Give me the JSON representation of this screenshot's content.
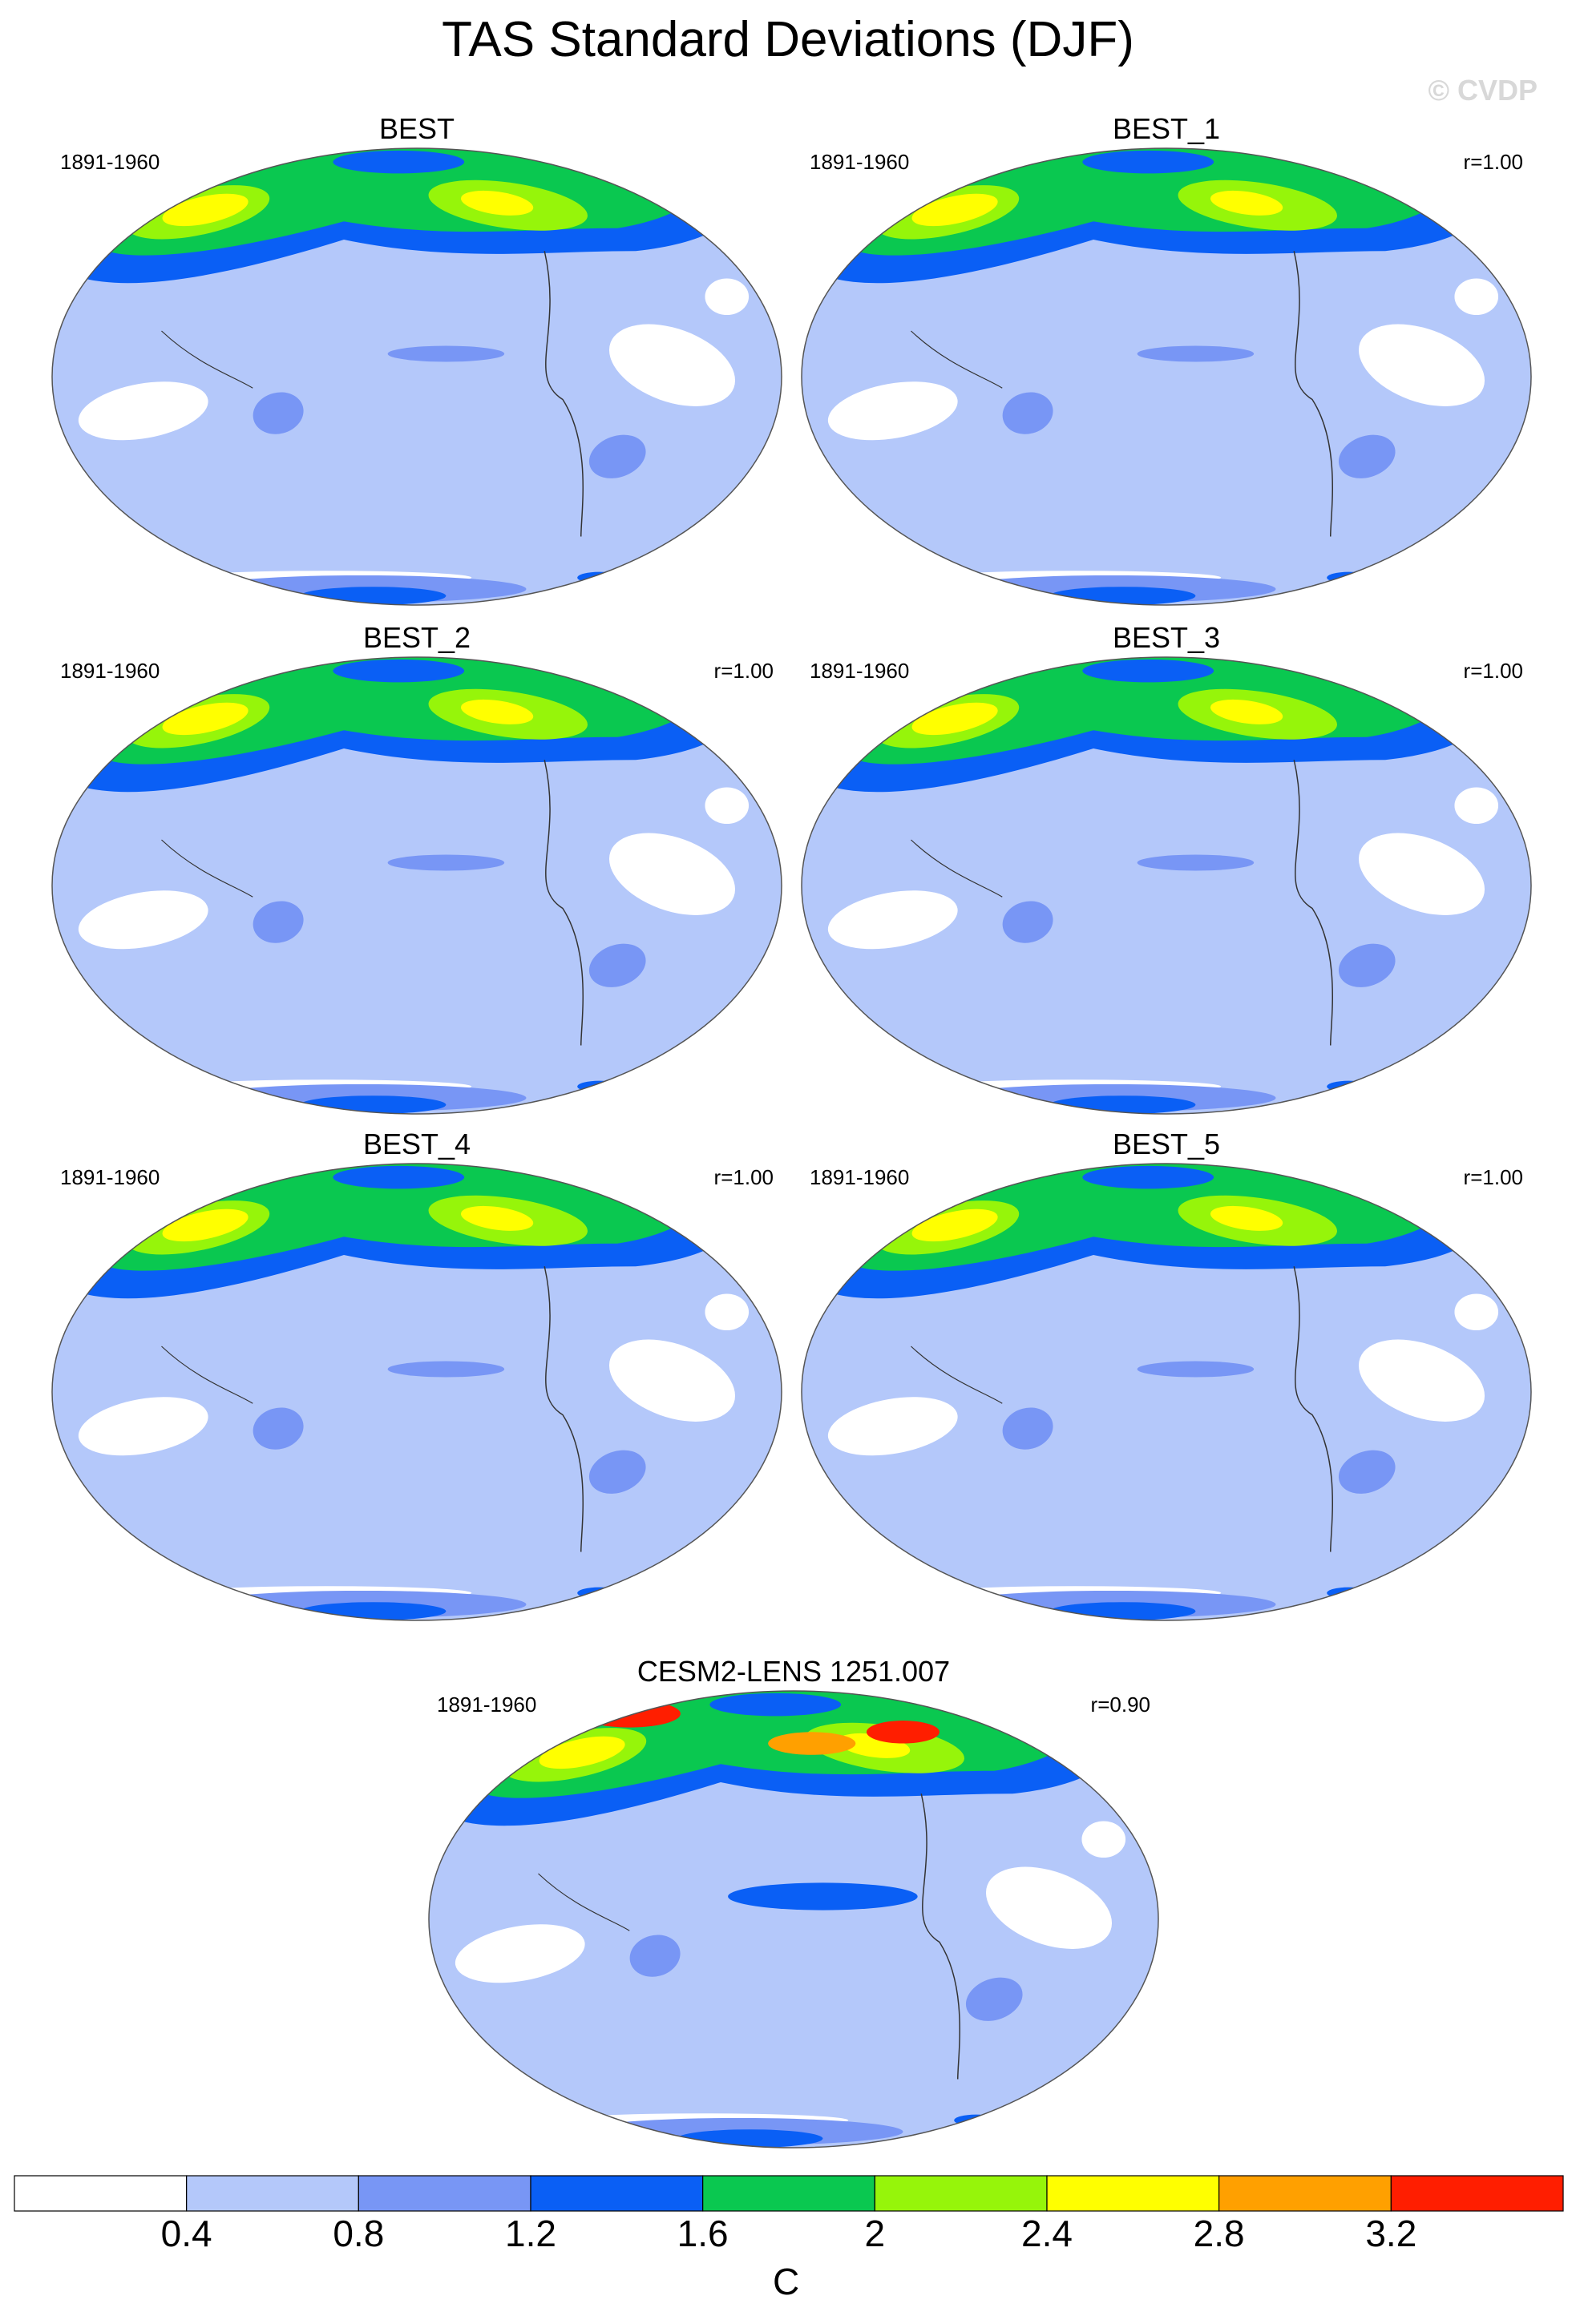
{
  "figure": {
    "title": "TAS Standard Deviations (DJF)",
    "credit": "© CVDP"
  },
  "panels": [
    {
      "name": "BEST",
      "period": "1891-1960",
      "correlation": ""
    },
    {
      "name": "BEST_1",
      "period": "1891-1960",
      "correlation": "r=1.00"
    },
    {
      "name": "BEST_2",
      "period": "1891-1960",
      "correlation": "r=1.00"
    },
    {
      "name": "BEST_3",
      "period": "1891-1960",
      "correlation": "r=1.00"
    },
    {
      "name": "BEST_4",
      "period": "1891-1960",
      "correlation": "r=1.00"
    },
    {
      "name": "BEST_5",
      "period": "1891-1960",
      "correlation": "r=1.00"
    },
    {
      "name": "CESM2-LENS 1251.007",
      "period": "1891-1960",
      "correlation": "r=0.90"
    }
  ],
  "colorbar": {
    "unit": "C",
    "ticks": [
      "0.4",
      "0.8",
      "1.2",
      "1.6",
      "2",
      "2.4",
      "2.8",
      "3.2"
    ],
    "colors": [
      "#ffffff",
      "#b4c8fa",
      "#7896f5",
      "#0a5ff5",
      "#0ac850",
      "#96f50a",
      "#ffff00",
      "#ffa000",
      "#ff1e00"
    ]
  }
}
